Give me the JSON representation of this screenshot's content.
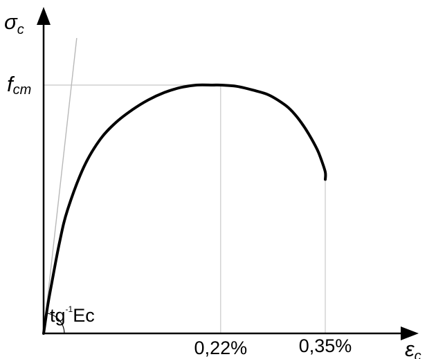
{
  "chart_data": {
    "type": "line",
    "title": "",
    "y_axis_label": {
      "main": "σ",
      "sub": "c"
    },
    "x_axis_label": {
      "main": "ε",
      "sub": "c"
    },
    "y_tick_label": {
      "main": "f",
      "sub": "cm"
    },
    "x_tick_labels": [
      "0,22%",
      "0,35%"
    ],
    "angle_label": {
      "main": "tg",
      "sup": "-1",
      "rest": "Ec"
    },
    "x_ticks": [
      0.22,
      0.35
    ],
    "y_ticks": [
      1.0
    ],
    "xlim": [
      0,
      0.43
    ],
    "ylim": [
      0,
      1.3
    ],
    "series": [
      {
        "x": [
          0,
          0.005,
          0.01,
          0.02,
          0.03,
          0.05,
          0.07,
          0.09,
          0.11,
          0.13,
          0.15,
          0.17,
          0.19,
          0.21,
          0.22,
          0.24,
          0.26,
          0.28,
          0.3,
          0.31,
          0.32,
          0.33,
          0.34,
          0.345,
          0.35,
          0.35
        ],
        "y": [
          0,
          0.11,
          0.2,
          0.37,
          0.5,
          0.67,
          0.78,
          0.85,
          0.9,
          0.94,
          0.97,
          0.99,
          1.0,
          1.0,
          1.0,
          0.995,
          0.98,
          0.96,
          0.92,
          0.89,
          0.85,
          0.8,
          0.74,
          0.7,
          0.65,
          0.62
        ]
      }
    ],
    "tangent_line": {
      "x": [
        0,
        0.036
      ],
      "y": [
        0,
        1.2
      ]
    },
    "grid": false,
    "legend": "none",
    "colors": {
      "curve": "#000000",
      "axes": "#000000",
      "guides": "#c8c8c8",
      "tangent": "#b8b8b8"
    }
  }
}
